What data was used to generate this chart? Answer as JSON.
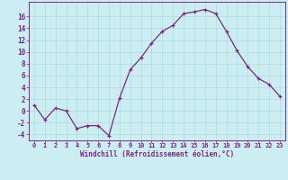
{
  "hours": [
    0,
    1,
    2,
    3,
    4,
    5,
    6,
    7,
    8,
    9,
    10,
    11,
    12,
    13,
    14,
    15,
    16,
    17,
    18,
    19,
    20,
    21,
    22,
    23
  ],
  "values": [
    1.0,
    -1.5,
    0.5,
    0.0,
    -3.0,
    -2.5,
    -2.5,
    -4.2,
    2.2,
    7.0,
    9.0,
    11.5,
    13.5,
    14.5,
    16.5,
    16.8,
    17.2,
    16.5,
    13.5,
    10.2,
    7.5,
    5.5,
    4.5,
    2.5
  ],
  "line_color": "#7B2882",
  "marker": "+",
  "bg_color": "#cceef2",
  "grid_color": "#aadddd",
  "xlabel": "Windchill (Refroidissement éolien,°C)",
  "yticks": [
    -4,
    -2,
    0,
    2,
    4,
    6,
    8,
    10,
    12,
    14,
    16
  ],
  "ylim": [
    -5.0,
    18.5
  ],
  "xlim": [
    -0.5,
    23.5
  ],
  "label_color": "#7B2882",
  "tick_color": "#7B2882",
  "spine_color": "#7B2882"
}
